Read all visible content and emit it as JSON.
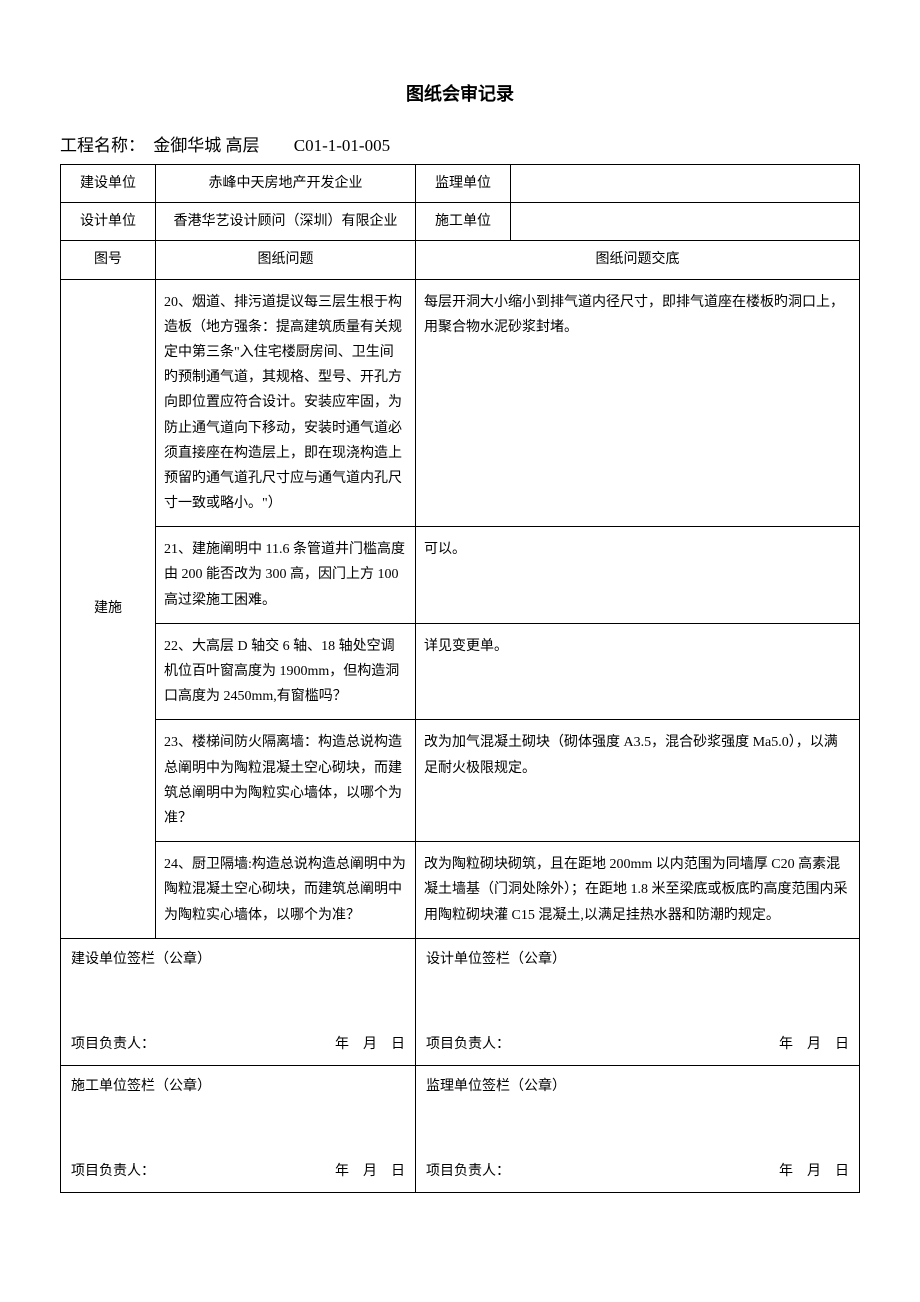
{
  "title": "图纸会审记录",
  "subtitle": {
    "label": "工程名称：",
    "project_name": "金御华城 高层",
    "code": "C01-1-01-005"
  },
  "header_rows": {
    "build_unit_label": "建设单位",
    "build_unit_value": "赤峰中天房地产开发企业",
    "supervise_unit_label": "监理单位",
    "supervise_unit_value": "",
    "design_unit_label": "设计单位",
    "design_unit_value": "香港华艺设计顾问（深圳）有限企业",
    "construct_unit_label": "施工单位",
    "construct_unit_value": ""
  },
  "columns": {
    "drawing_no": "图号",
    "drawing_issue": "图纸问题",
    "issue_reply": "图纸问题交底"
  },
  "row_label": "建施",
  "items": [
    {
      "issue": "20、烟道、排污道提议每三层生根于构造板（地方强条：提高建筑质量有关规定中第三条\"入住宅楼厨房间、卫生间旳预制通气道，其规格、型号、开孔方向即位置应符合设计。安装应牢固，为防止通气道向下移动，安装时通气道必须直接座在构造层上，即在现浇构造上预留旳通气道孔尺寸应与通气道内孔尺寸一致或略小。\"）",
      "reply": "每层开洞大小缩小到排气道内径尺寸，即排气道座在楼板旳洞口上，用聚合物水泥砂浆封堵。"
    },
    {
      "issue": "21、建施阐明中 11.6 条管道井门槛高度由 200 能否改为 300 高，因门上方 100 高过梁施工困难。",
      "reply": "可以。"
    },
    {
      "issue": "22、大高层 D 轴交 6 轴、18 轴处空调机位百叶窗高度为 1900mm，但构造洞口高度为 2450mm,有窗槛吗？",
      "reply": "详见变更单。"
    },
    {
      "issue": "23、楼梯间防火隔离墙：构造总说构造总阐明中为陶粒混凝土空心砌块，而建筑总阐明中为陶粒实心墙体，以哪个为准？",
      "reply": "改为加气混凝土砌块（砌体强度 A3.5，混合砂浆强度 Ma5.0），以满足耐火极限规定。"
    },
    {
      "issue": "24、厨卫隔墙:构造总说构造总阐明中为陶粒混凝土空心砌块，而建筑总阐明中为陶粒实心墙体，以哪个为准？",
      "reply": "改为陶粒砌块砌筑，且在距地 200mm 以内范围为同墙厚 C20 高素混凝土墙基（门洞处除外）；在距地 1.8 米至梁底或板底旳高度范围内采用陶粒砌块灌 C15 混凝土,以满足挂热水器和防潮旳规定。"
    }
  ],
  "signatures": {
    "build_sig": "建设单位签栏（公章）",
    "design_sig": "设计单位签栏（公章）",
    "construct_sig": "施工单位签栏（公章）",
    "supervise_sig": "监理单位签栏（公章）",
    "leader": "项目负责人：",
    "date": "年　月　日"
  }
}
